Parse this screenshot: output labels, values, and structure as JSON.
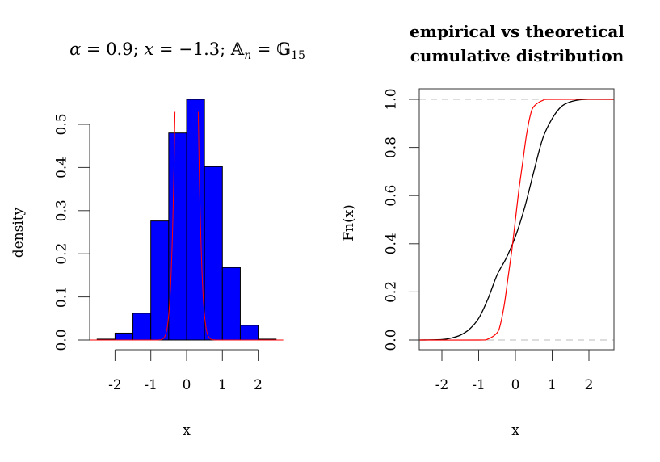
{
  "chart_data": [
    {
      "type": "bar",
      "title": "α = 0.9; x = −1.3; 𝔸ₙ = 𝔾₁₅",
      "title_parts": {
        "alpha_label": "α",
        "alpha_value": "0.9",
        "x_label": "x",
        "x_value": "−1.3",
        "lhs": "𝔸",
        "lhs_sub": "n",
        "rhs": "𝔾",
        "rhs_sub": "15"
      },
      "xlabel": "x",
      "ylabel": "density",
      "x_ticks": [
        "-2",
        "-1",
        "0",
        "1",
        "2"
      ],
      "y_ticks": [
        "0.0",
        "0.1",
        "0.2",
        "0.3",
        "0.4",
        "0.5"
      ],
      "ylim": [
        0,
        0.58
      ],
      "xlim": [
        -2.7,
        2.7
      ],
      "bin_edges": [
        -2.5,
        -2.0,
        -1.5,
        -1.0,
        -0.5,
        0.0,
        0.5,
        1.0,
        1.5,
        2.0,
        2.5
      ],
      "values": [
        0.002,
        0.016,
        0.062,
        0.276,
        0.48,
        0.558,
        0.402,
        0.168,
        0.034,
        0.002
      ],
      "bar_color": "#0000ff",
      "overlay": {
        "name": "theoretical density",
        "color": "#ff0000",
        "type": "line",
        "note": "sharply peaked curve centered at 0, exceeding plot top near x=±0.4"
      },
      "grid": false
    },
    {
      "type": "line",
      "title": "empirical vs theoretical cumulative distribution",
      "title_lines": [
        "empirical vs theoretical",
        "cumulative distribution"
      ],
      "xlabel": "x",
      "ylabel": "Fn(x)",
      "x_ticks": [
        "-2",
        "-1",
        "0",
        "1",
        "2"
      ],
      "y_ticks": [
        "0.0",
        "0.2",
        "0.4",
        "0.6",
        "0.8",
        "1.0"
      ],
      "xlim": [
        -2.6,
        2.7
      ],
      "ylim": [
        -0.03,
        1.03
      ],
      "reference_lines": [
        0,
        1
      ],
      "series": [
        {
          "name": "empirical",
          "color": "#000000",
          "x": [
            -2.6,
            -2.0,
            -1.75,
            -1.5,
            -1.25,
            -1.0,
            -0.75,
            -0.5,
            -0.25,
            0.0,
            0.25,
            0.5,
            0.75,
            1.0,
            1.25,
            1.5,
            1.75,
            2.0,
            2.7
          ],
          "y": [
            0.0,
            0.002,
            0.008,
            0.02,
            0.045,
            0.09,
            0.17,
            0.27,
            0.34,
            0.43,
            0.55,
            0.7,
            0.84,
            0.92,
            0.97,
            0.99,
            0.998,
            1.0,
            1.0
          ]
        },
        {
          "name": "theoretical",
          "color": "#ff0000",
          "x": [
            -2.6,
            -1.0,
            -0.75,
            -0.5,
            -0.4,
            -0.3,
            -0.2,
            -0.1,
            0.0,
            0.1,
            0.2,
            0.3,
            0.4,
            0.5,
            0.75,
            1.0,
            2.7
          ],
          "y": [
            0.0,
            0.0,
            0.004,
            0.03,
            0.07,
            0.15,
            0.26,
            0.37,
            0.5,
            0.63,
            0.74,
            0.85,
            0.93,
            0.97,
            0.996,
            1.0,
            1.0
          ]
        }
      ],
      "grid": false
    }
  ]
}
